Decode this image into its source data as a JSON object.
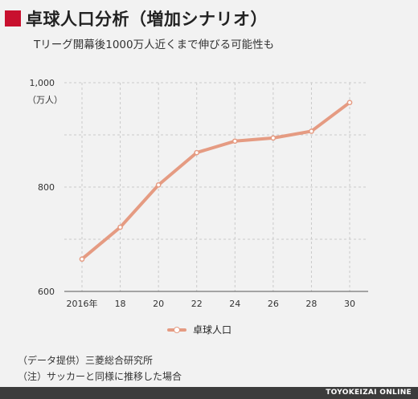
{
  "header": {
    "title": "卓球人口分析（増加シナリオ）",
    "subtitle": "Tリーグ開幕後1000万人近くまで伸びる可能性も",
    "accent_color": "#c8102e"
  },
  "chart_data": {
    "type": "line",
    "x": [
      "2016年",
      "18",
      "20",
      "22",
      "24",
      "26",
      "28",
      "30"
    ],
    "series": [
      {
        "name": "卓球人口",
        "values": [
          662,
          723,
          804,
          866,
          888,
          894,
          907,
          962
        ],
        "color": "#e59b82"
      }
    ],
    "y_tick_labels": [
      "600",
      "800",
      "1,000"
    ],
    "y_ticks": [
      600,
      800,
      1000
    ],
    "ylim": [
      600,
      1000
    ],
    "y_unit": "（万人）",
    "grid": true,
    "legend_position": "bottom-center"
  },
  "legend": {
    "label": "卓球人口"
  },
  "notes": {
    "source": "（データ提供）三菱総合研究所",
    "note": "（注）サッカーと同様に推移した場合"
  },
  "footer": {
    "brand": "TOYOKEIZAI ONLINE"
  }
}
